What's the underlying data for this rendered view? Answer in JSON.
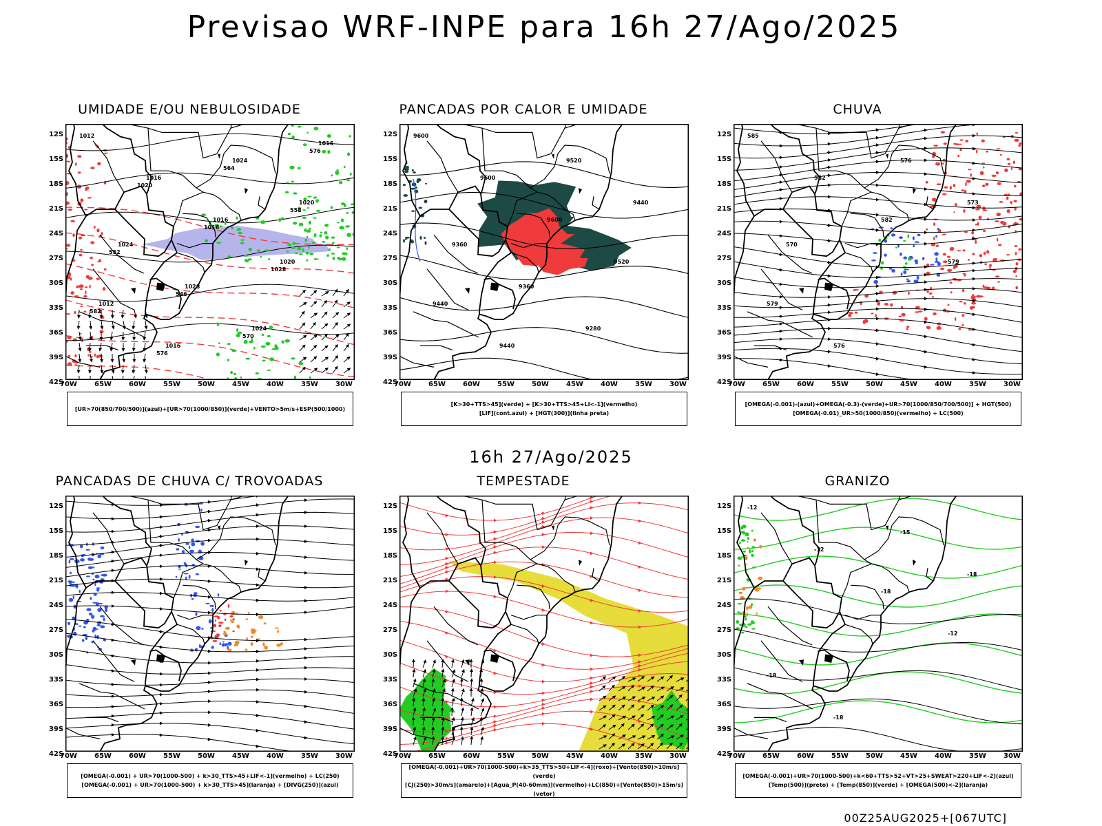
{
  "title": "Previsao WRF-INPE  para 16h 27/Ago/2025",
  "mid_title": "16h 27/Ago/2025",
  "footer": "00Z25AUG2025+[067UTC]",
  "lat_labels": [
    "12S",
    "15S",
    "18S",
    "21S",
    "24S",
    "27S",
    "30S",
    "33S",
    "36S",
    "39S",
    "42S"
  ],
  "lon_labels": [
    "70W",
    "65W",
    "60W",
    "55W",
    "50W",
    "45W",
    "40W",
    "35W",
    "30W"
  ],
  "colors": {
    "red": "#ef3b3b",
    "green": "#22cc22",
    "blue": "#3355ee",
    "darkteal": "#1d4a44",
    "yellow": "#e6dc3a",
    "orange": "#f08a2a",
    "lavender": "#a8a8e8"
  },
  "panels": [
    {
      "title": "UMIDADE E/OU NEBULOSIDADE",
      "legend": [
        "[UR>70(850/700/500)](azul)+[UR>70(1000/850)](verde)+VENTO>5m/s+ESP(500/1000)"
      ],
      "labels": [
        "1012",
        "1016",
        "1016",
        "1020",
        "1012",
        "1016",
        "1024",
        "1020",
        "1024",
        "1028",
        "1024",
        "1016",
        "1020",
        "1016",
        "1028",
        "582",
        "576",
        "564",
        "558",
        "552",
        "546",
        "570",
        "576"
      ]
    },
    {
      "title": "PANCADAS POR CALOR E UMIDADE",
      "legend": [
        "[K>30+TTS>45](verde) + [K>30+TTS>45+LI<-1](vermelho)",
        "[LIF](cont.azul) + [HGT(300)](linha preta)"
      ],
      "labels": [
        "9600",
        "9600",
        "9600",
        "9520",
        "9440",
        "9440",
        "9520",
        "9440",
        "9360",
        "9360",
        "9280"
      ]
    },
    {
      "title": "CHUVA",
      "legend": [
        "[OMEGA(-0.001)-(azul)+OMEGA(-0.3)-(verde)+UR>70(1000/850/700/500)] + HGT(500)",
        "[OMEGA(-0.01)_UR>50(1000/850)(vermelho) + LC(500)"
      ],
      "labels": [
        "585",
        "582",
        "582",
        "579",
        "579",
        "576",
        "576",
        "573",
        "570"
      ]
    },
    {
      "title": "PANCADAS DE CHUVA C/ TROVOADAS",
      "legend": [
        "[OMEGA(-0.001) + UR>70(1000-500) + k>30_TTS>45+LIF<-1](vermelho) + LC(250)",
        "[OMEGA(-0.001) + UR>70(1000-500) + k>30_TTS>45](laranja) + [DIVG(250)](azul)"
      ],
      "labels": []
    },
    {
      "title": "TEMPESTADE",
      "legend": [
        "[OMEGA(-0.001)+UR>70(1000-500)+k>35_TTS>50+LIF<-4](roxo)+[Vento(850)>10m/s](verde)",
        "[CJ(250)>30m/s](amarelo)+[Agua_P(40-60mm)](vermelho)+LC(850)+[Vento(850)>15m/s](vetor)"
      ],
      "labels": []
    },
    {
      "title": "GRANIZO",
      "legend": [
        "[OMEGA(-0.001)+UR>70(1000-500)+k<60+TTS>52+VT>25+SWEAT>220+LIF<-2](azul)",
        "[Temp(500)](preto) + [Temp(850)](verde) + [OMEGA(500)<-2](laranja)"
      ],
      "labels": [
        "-12",
        "-12",
        "-18",
        "-12",
        "-18",
        "-18",
        "-15",
        "-18"
      ]
    }
  ]
}
